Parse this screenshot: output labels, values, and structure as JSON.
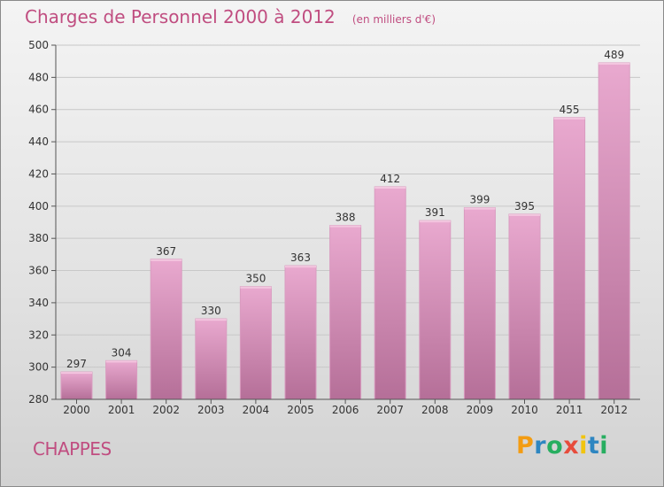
{
  "chart_data": {
    "type": "bar",
    "title": "Charges de Personnel 2000 à 2012",
    "subtitle": "(en milliers d'€)",
    "categories": [
      "2000",
      "2001",
      "2002",
      "2003",
      "2004",
      "2005",
      "2006",
      "2007",
      "2008",
      "2009",
      "2010",
      "2011",
      "2012"
    ],
    "values": [
      297,
      304,
      367,
      330,
      350,
      363,
      388,
      412,
      391,
      399,
      395,
      455,
      489
    ],
    "data_labels": [
      "297",
      "304",
      "367",
      "330",
      "350",
      "363",
      "388",
      "412",
      "391",
      "399",
      "395",
      "455",
      "489"
    ],
    "ylim": [
      280,
      500
    ],
    "yticks": [
      "280",
      "300",
      "320",
      "340",
      "360",
      "380",
      "400",
      "420",
      "440",
      "460",
      "480",
      "500"
    ],
    "grid": true,
    "bar_color": "#d98bb8"
  },
  "commune": "CHAPPES",
  "logo": {
    "text": "Proxiti",
    "letters": [
      "P",
      "r",
      "o",
      "x",
      "i",
      "t",
      "i"
    ],
    "colors": [
      "#f39c12",
      "#2e86c1",
      "#27ae60",
      "#e74c3c",
      "#f1c40f",
      "#2e86c1",
      "#27ae60"
    ]
  }
}
